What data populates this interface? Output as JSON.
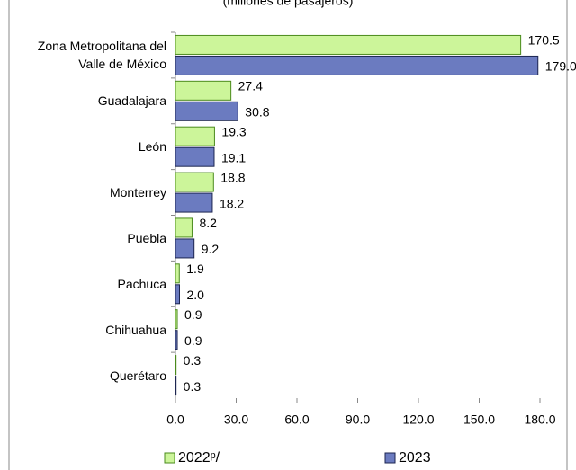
{
  "chart_data": {
    "type": "hbar",
    "subtitle": "(millones de pasajeros)",
    "categories": [
      "Zona Metropolitana del Valle de México",
      "Guadalajara",
      "León",
      "Monterrey",
      "Puebla",
      "Pachuca",
      "Chihuahua",
      "Querétaro"
    ],
    "series": [
      {
        "name": "2022ᵖ/",
        "color": "#ccf59a",
        "values": [
          170.5,
          27.4,
          19.3,
          18.8,
          8.2,
          1.9,
          0.9,
          0.3
        ]
      },
      {
        "name": "2023",
        "color": "#6b7bc0",
        "values": [
          179.0,
          30.8,
          19.1,
          18.2,
          9.2,
          2.0,
          0.9,
          0.3
        ],
        "value_labels": [
          "179.0",
          "30.8",
          "19.1",
          "18.2",
          "9.2",
          "2.0",
          "0.9",
          "0.3"
        ]
      }
    ],
    "xlim": [
      0,
      180
    ],
    "xticks": [
      {
        "value": 0,
        "label": "0.0"
      },
      {
        "value": 30,
        "label": "30.0"
      },
      {
        "value": 60,
        "label": "60.0"
      },
      {
        "value": 90,
        "label": "90.0"
      },
      {
        "value": 120,
        "label": "120.0"
      },
      {
        "value": 150,
        "label": "150.0"
      },
      {
        "value": 180,
        "label": "180.0"
      }
    ],
    "grid": false,
    "legend": "bottom"
  }
}
